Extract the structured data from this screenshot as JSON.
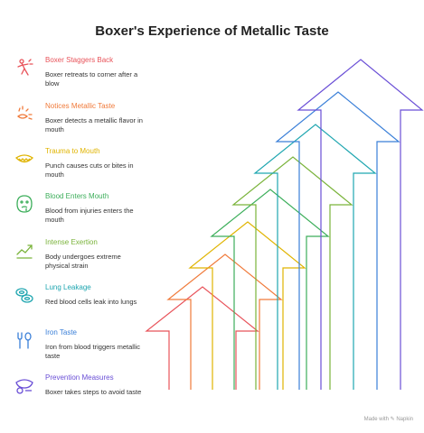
{
  "title": "Boxer's Experience of Metallic Taste",
  "steps": [
    {
      "label": "Boxer Staggers Back",
      "desc": "Boxer retreats to corner after a blow",
      "color": "#e8535a",
      "icon": "staggering-boxer-icon"
    },
    {
      "label": "Notices Metallic Taste",
      "desc": "Boxer detects a metallic flavor in mouth",
      "color": "#f07a3a",
      "icon": "taste-sparkle-icon"
    },
    {
      "label": "Trauma to Mouth",
      "desc": "Punch causes cuts or bites in mouth",
      "color": "#e0b400",
      "icon": "mouth-icon"
    },
    {
      "label": "Blood Enters Mouth",
      "desc": "Blood from injuries enters the mouth",
      "color": "#3cae5a",
      "icon": "face-blood-icon"
    },
    {
      "label": "Intense Exertion",
      "desc": "Body undergoes extreme physical strain",
      "color": "#7ab33a",
      "icon": "exertion-arrow-icon"
    },
    {
      "label": "Lung Leakage",
      "desc": "Red blood cells leak into lungs",
      "color": "#1fa6b0",
      "icon": "blood-cells-icon"
    },
    {
      "label": "Iron Taste",
      "desc": "Iron from blood triggers metallic taste",
      "color": "#3a7fd8",
      "icon": "fork-spoon-icon"
    },
    {
      "label": "Prevention Measures",
      "desc": "Boxer takes steps to avoid taste",
      "color": "#6a4fd6",
      "icon": "mouthguard-icon"
    }
  ],
  "footer": "Made with ✎ Napkin"
}
